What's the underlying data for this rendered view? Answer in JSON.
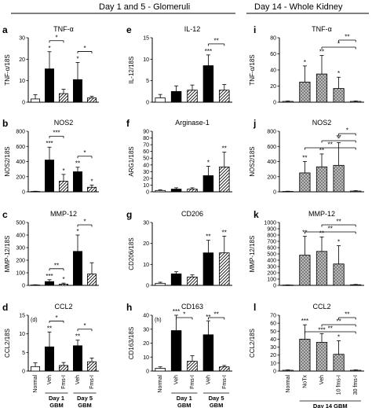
{
  "headers": {
    "left": "Day 1 and 5 - Glomeruli",
    "right": "Day 14 - Whole Kidney"
  },
  "x_labels": {
    "left": [
      "Normal",
      "Veh",
      "Fms-I",
      "Veh",
      "Fms-I"
    ],
    "right": [
      "Normal",
      "NoTx",
      "Veh",
      "10 fms-I",
      "30 fms-I"
    ]
  },
  "group_labels": {
    "left_day1": "Day 1",
    "left_day5": "Day 5",
    "gbm": "GBM",
    "right": "Day 14 GBM"
  },
  "colors": {
    "hatch_gray": "#9e9e9e",
    "black": "#000000"
  },
  "chart_data": [
    {
      "id": "a",
      "title": "TNF-α",
      "ylabel": "TNF-α/18S",
      "type": "bar",
      "layout": "left",
      "ylim": [
        0,
        30
      ],
      "yticks": [
        0,
        10,
        20,
        30
      ],
      "values": [
        1.5,
        15.5,
        4,
        10.5,
        2
      ],
      "errors": [
        2,
        8,
        2,
        8,
        0.8
      ],
      "stars": [
        "",
        "*",
        "",
        "*",
        ""
      ],
      "sig": [
        {
          "from": 1,
          "to": 2,
          "label": "*"
        },
        {
          "from": 3,
          "to": 4,
          "label": "*"
        }
      ]
    },
    {
      "id": "b",
      "title": "NOS2",
      "ylabel": "NOS2/18S",
      "type": "bar",
      "layout": "left",
      "ylim": [
        0,
        800
      ],
      "yticks": [
        0,
        200,
        400,
        600,
        800
      ],
      "values": [
        5,
        420,
        140,
        265,
        60
      ],
      "errors": [
        3,
        170,
        90,
        60,
        30
      ],
      "stars": [
        "",
        "***",
        "*",
        "**",
        "*"
      ],
      "sig": [
        {
          "from": 1,
          "to": 2,
          "label": "***"
        },
        {
          "from": 3,
          "to": 4,
          "label": "*"
        }
      ]
    },
    {
      "id": "c",
      "title": "MMP-12",
      "ylabel": "MMP-12/18S",
      "type": "bar",
      "layout": "left",
      "ylim": [
        0,
        500
      ],
      "yticks": [
        0,
        100,
        200,
        300,
        400,
        500
      ],
      "values": [
        3,
        30,
        10,
        270,
        90
      ],
      "errors": [
        2,
        15,
        8,
        130,
        90
      ],
      "stars": [
        "",
        "***",
        "*",
        "*",
        ""
      ],
      "sig": [
        {
          "from": 1,
          "to": 2,
          "label": "**"
        },
        {
          "from": 3,
          "to": 4,
          "label": "*"
        }
      ]
    },
    {
      "id": "d",
      "title": "CCL2",
      "ylabel": "CCL2/18S",
      "type": "bar",
      "layout": "left",
      "ylim": [
        0,
        15
      ],
      "yticks": [
        0,
        5,
        10,
        15
      ],
      "panel_note": "(d)",
      "values": [
        1.2,
        6.5,
        1.5,
        6.8,
        2.5
      ],
      "errors": [
        1,
        4,
        0.8,
        1.5,
        1
      ],
      "stars": [
        "",
        "**",
        "",
        "**",
        ""
      ],
      "sig": [
        {
          "from": 1,
          "to": 2,
          "label": "*"
        },
        {
          "from": 3,
          "to": 4,
          "label": "*"
        }
      ]
    },
    {
      "id": "e",
      "title": "IL-12",
      "ylabel": "IL-12/18S",
      "type": "bar",
      "layout": "left",
      "ylim": [
        0,
        15
      ],
      "yticks": [
        0,
        5,
        10,
        15
      ],
      "values": [
        1,
        2.5,
        2.8,
        8.5,
        2.8
      ],
      "errors": [
        0.8,
        1.3,
        1.2,
        2.5,
        1.3
      ],
      "stars": [
        "",
        "",
        "",
        "***",
        ""
      ],
      "sig": [
        {
          "from": 3,
          "to": 4,
          "label": "**"
        }
      ]
    },
    {
      "id": "f",
      "title": "Arginase-1",
      "ylabel": "ARG1/18S",
      "type": "bar",
      "layout": "left",
      "ylim": [
        0,
        90
      ],
      "yticks": [
        0,
        10,
        20,
        30,
        40,
        50,
        60,
        70,
        80,
        90
      ],
      "values": [
        2,
        4,
        4,
        24,
        37
      ],
      "errors": [
        1,
        2,
        2,
        14,
        22
      ],
      "stars": [
        "",
        "",
        "",
        "*",
        "**"
      ],
      "sig": []
    },
    {
      "id": "g",
      "title": "CD206",
      "ylabel": "CD206/18S",
      "type": "bar",
      "layout": "left",
      "ylim": [
        0,
        30
      ],
      "yticks": [
        0,
        10,
        20,
        30
      ],
      "values": [
        1,
        5.5,
        4,
        15.5,
        15.5
      ],
      "errors": [
        0.5,
        1,
        1,
        6,
        8
      ],
      "stars": [
        "",
        "",
        "",
        "**",
        "**"
      ],
      "sig": []
    },
    {
      "id": "h",
      "title": "CD163",
      "ylabel": "CD163/18S",
      "type": "bar",
      "layout": "left",
      "ylim": [
        0,
        40
      ],
      "yticks": [
        0,
        10,
        20,
        30,
        40
      ],
      "panel_note": "(h)",
      "values": [
        2,
        29,
        7,
        26,
        3
      ],
      "errors": [
        1,
        12,
        4,
        10,
        1
      ],
      "stars": [
        "",
        "***",
        "",
        "**",
        ""
      ],
      "sig": [
        {
          "from": 1,
          "to": 2,
          "label": "*"
        },
        {
          "from": 3,
          "to": 4,
          "label": "**"
        }
      ]
    },
    {
      "id": "i",
      "title": "TNF-α",
      "ylabel": "TNF-α/18S",
      "type": "bar",
      "layout": "right",
      "ylim": [
        0,
        80
      ],
      "yticks": [
        0,
        20,
        40,
        60,
        80
      ],
      "values": [
        1,
        25,
        35,
        17,
        1
      ],
      "errors": [
        0.5,
        20,
        23,
        14,
        0.5
      ],
      "stars": [
        "",
        "*",
        "**",
        "*",
        ""
      ],
      "sig": [
        {
          "from": 2,
          "to": 4,
          "label": "*"
        },
        {
          "from": 3,
          "to": 4,
          "label": "**"
        }
      ]
    },
    {
      "id": "j",
      "title": "NOS2",
      "ylabel": "NOS2/18S",
      "type": "bar",
      "layout": "right",
      "ylim": [
        0,
        800
      ],
      "yticks": [
        0,
        200,
        400,
        600,
        800
      ],
      "values": [
        5,
        250,
        330,
        350,
        10
      ],
      "errors": [
        3,
        150,
        170,
        300,
        5
      ],
      "stars": [
        "",
        "**",
        "**",
        "*",
        ""
      ],
      "sig": [
        {
          "from": 1,
          "to": 4,
          "label": "**"
        },
        {
          "from": 2,
          "to": 4,
          "label": "**"
        },
        {
          "from": 3,
          "to": 4,
          "label": "*"
        }
      ]
    },
    {
      "id": "k",
      "title": "MMP-12",
      "ylabel": "MMP-12/18S",
      "type": "bar",
      "layout": "right",
      "ylim": [
        0,
        1000
      ],
      "yticks": [
        0,
        100,
        200,
        300,
        400,
        500,
        600,
        700,
        800,
        900,
        1000
      ],
      "values": [
        5,
        480,
        540,
        340,
        10
      ],
      "errors": [
        3,
        300,
        230,
        290,
        5
      ],
      "stars": [
        "",
        "**",
        "**",
        "*",
        ""
      ],
      "sig": [
        {
          "from": 1,
          "to": 4,
          "label": "**"
        },
        {
          "from": 2,
          "to": 4,
          "label": "**"
        }
      ]
    },
    {
      "id": "l",
      "title": "CCL2",
      "ylabel": "CCL2/18S",
      "type": "bar",
      "layout": "right",
      "ylim": [
        0,
        70
      ],
      "yticks": [
        0,
        10,
        20,
        30,
        40,
        50,
        60,
        70
      ],
      "values": [
        1,
        40,
        36,
        21,
        1
      ],
      "errors": [
        0.5,
        18,
        11,
        17,
        0.5
      ],
      "stars": [
        "",
        "***",
        "***",
        "*",
        ""
      ],
      "sig": [
        {
          "from": 1,
          "to": 4,
          "label": "**"
        },
        {
          "from": 2,
          "to": 4,
          "label": "**"
        },
        {
          "from": 3,
          "to": 4,
          "label": "**"
        }
      ]
    }
  ]
}
